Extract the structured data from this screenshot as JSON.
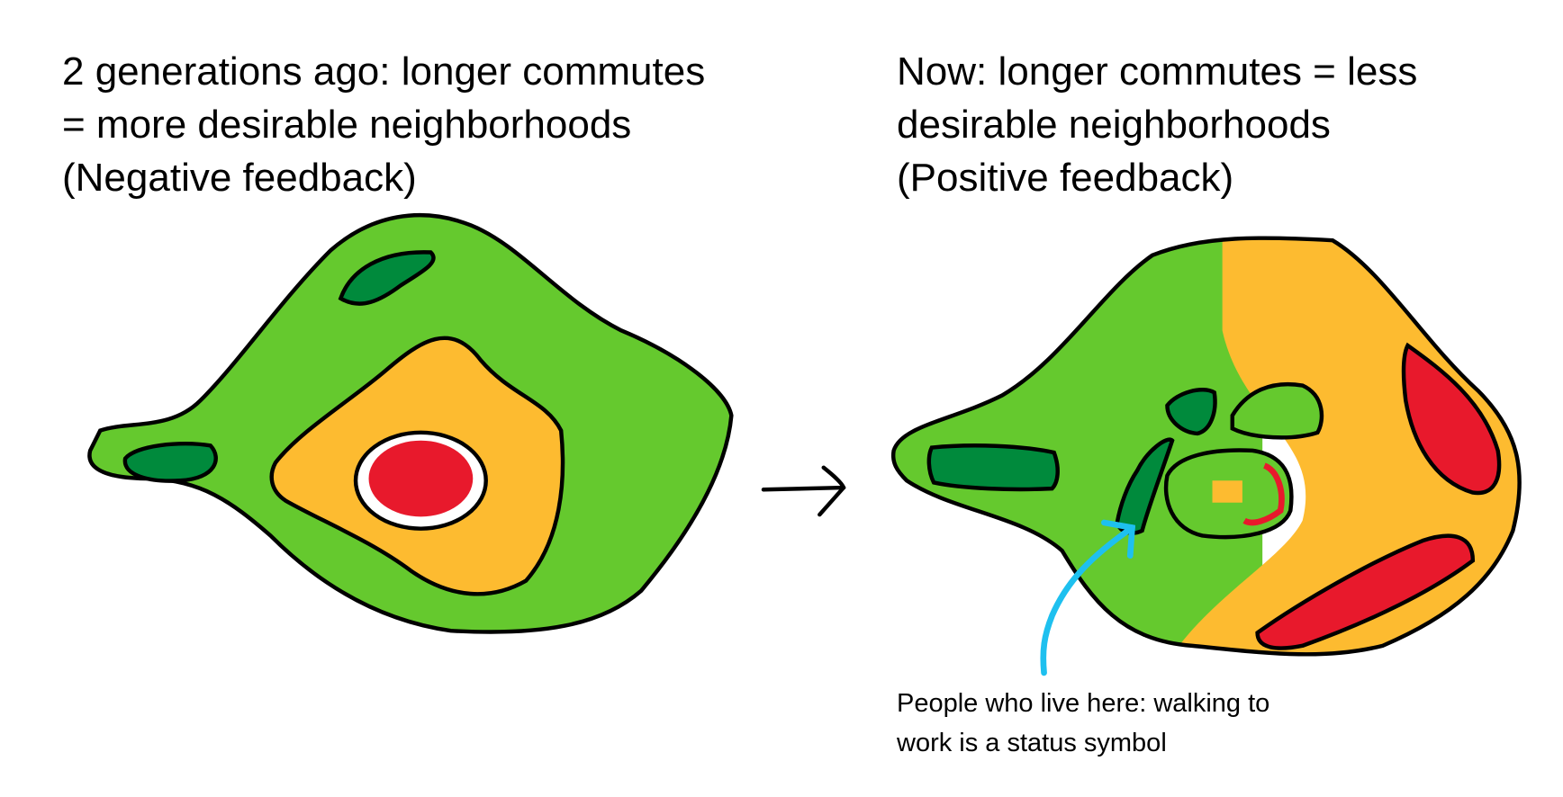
{
  "left_panel": {
    "title_lines": [
      "2 generations ago: longer commutes",
      "= more desirable neighborhoods",
      "(Negative feedback)"
    ]
  },
  "right_panel": {
    "title_lines": [
      "Now: longer commutes = less",
      "desirable neighborhoods",
      "(Positive feedback)"
    ],
    "annotation_lines": [
      "People who live here: walking to",
      "work is a status symbol"
    ]
  },
  "colors": {
    "light_green": "#65c92e",
    "dark_green": "#008a3c",
    "orange": "#fdbb30",
    "red": "#e8192c",
    "blue_arrow": "#1ec0ef",
    "outline": "#000000"
  }
}
